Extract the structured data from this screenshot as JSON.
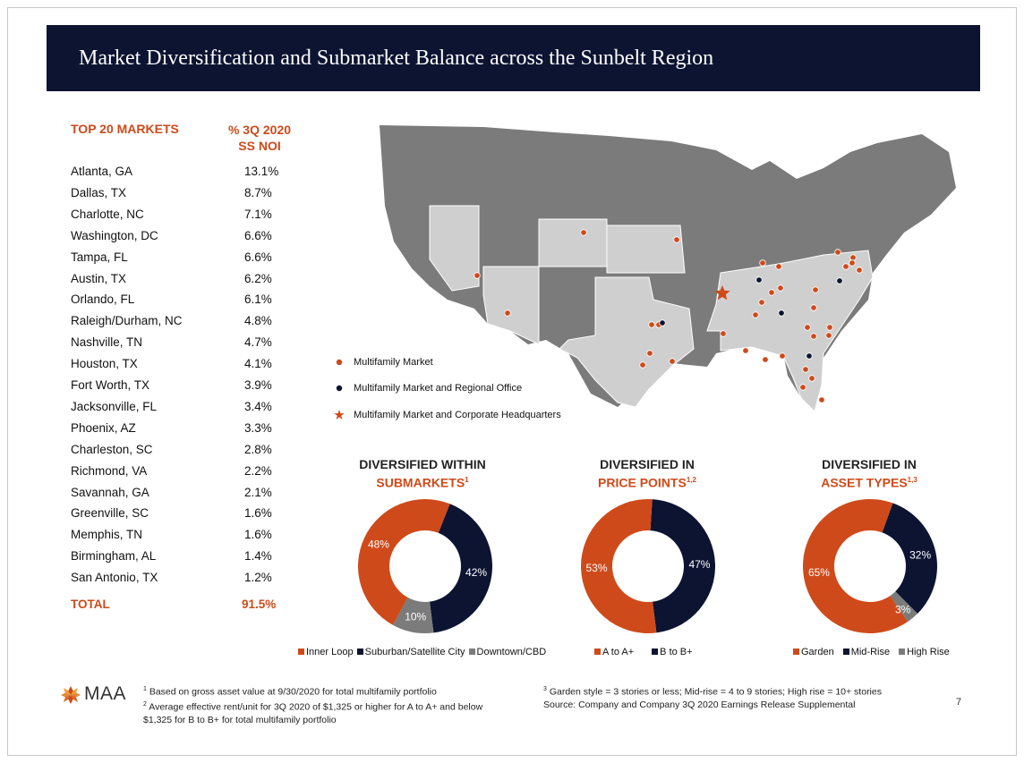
{
  "title": "Market Diversification and Submarket Balance across the Sunbelt Region",
  "colors": {
    "navy": "#0c1432",
    "orange": "#cf4a1a",
    "gray": "#7b7b7b",
    "light_gray": "#cfcfcf",
    "dark_gray": "#777777"
  },
  "markets_table": {
    "header_market": "TOP 20 MARKETS",
    "header_pct_line1": "% 3Q 2020",
    "header_pct_line2": "SS NOI",
    "rows": [
      {
        "market": "Atlanta, GA",
        "pct": "13.1%"
      },
      {
        "market": "Dallas, TX",
        "pct": "8.7%"
      },
      {
        "market": "Charlotte, NC",
        "pct": "7.1%"
      },
      {
        "market": "Washington, DC",
        "pct": "6.6%"
      },
      {
        "market": "Tampa, FL",
        "pct": "6.6%"
      },
      {
        "market": "Austin, TX",
        "pct": "6.2%"
      },
      {
        "market": "Orlando, FL",
        "pct": "6.1%"
      },
      {
        "market": "Raleigh/Durham, NC",
        "pct": "4.8%"
      },
      {
        "market": "Nashville, TN",
        "pct": "4.7%"
      },
      {
        "market": "Houston, TX",
        "pct": "4.1%"
      },
      {
        "market": "Fort Worth, TX",
        "pct": "3.9%"
      },
      {
        "market": "Jacksonville, FL",
        "pct": "3.4%"
      },
      {
        "market": "Phoenix, AZ",
        "pct": "3.3%"
      },
      {
        "market": "Charleston, SC",
        "pct": "2.8%"
      },
      {
        "market": "Richmond, VA",
        "pct": "2.2%"
      },
      {
        "market": "Savannah, GA",
        "pct": "2.1%"
      },
      {
        "market": "Greenville, SC",
        "pct": "1.6%"
      },
      {
        "market": "Memphis, TN",
        "pct": "1.6%"
      },
      {
        "market": "Birmingham, AL",
        "pct": "1.4%"
      },
      {
        "market": "San Antonio, TX",
        "pct": "1.2%"
      }
    ],
    "total_label": "TOTAL",
    "total_value": "91.5%"
  },
  "map_legend": {
    "market": "Multifamily Market",
    "regional": "Multifamily Market and Regional Office",
    "hq": "Multifamily Market and Corporate Headquarters"
  },
  "chart_data": [
    {
      "type": "pie",
      "donut": true,
      "title_line1": "DIVERSIFIED WITHIN",
      "title_line2": "SUBMARKETS",
      "title_sup": "1",
      "categories": [
        "Inner Loop",
        "Suburban/Satellite City",
        "Downtown/CBD"
      ],
      "values": [
        48,
        42,
        10
      ],
      "labels": [
        "48%",
        "42%",
        "10%"
      ],
      "colors": [
        "#cf4a1a",
        "#0c1432",
        "#7b7b7b"
      ]
    },
    {
      "type": "pie",
      "donut": true,
      "title_line1": "DIVERSIFIED IN",
      "title_line2": "PRICE POINTS",
      "title_sup": "1,2",
      "categories": [
        "A to A+",
        "B to B+"
      ],
      "values": [
        53,
        47
      ],
      "labels": [
        "53%",
        "47%"
      ],
      "colors": [
        "#cf4a1a",
        "#0c1432"
      ]
    },
    {
      "type": "pie",
      "donut": true,
      "title_line1": "DIVERSIFIED IN",
      "title_line2": "ASSET TYPES",
      "title_sup": "1,3",
      "categories": [
        "Garden",
        "Mid-Rise",
        "High Rise"
      ],
      "values": [
        65,
        32,
        3
      ],
      "labels": [
        "65%",
        "32%",
        "3%"
      ],
      "colors": [
        "#cf4a1a",
        "#0c1432",
        "#7b7b7b"
      ]
    }
  ],
  "footnotes": {
    "fn1": "Based on gross asset value at 9/30/2020 for total multifamily portfolio",
    "fn2_line1": "Average effective rent/unit for 3Q 2020 of $1,325 or higher for A to A+ and below",
    "fn2_line2": "$1,325 for B to B+ for total multifamily portfolio",
    "fn3": "Garden style = 3 stories or less; Mid-rise = 4 to 9 stories; High rise = 10+ stories",
    "source": "Source: Company and Company 3Q 2020 Earnings Release Supplemental",
    "sup1": "1",
    "sup2": "2",
    "sup3": "3"
  },
  "logo_text": "MAA",
  "page_number": "7"
}
